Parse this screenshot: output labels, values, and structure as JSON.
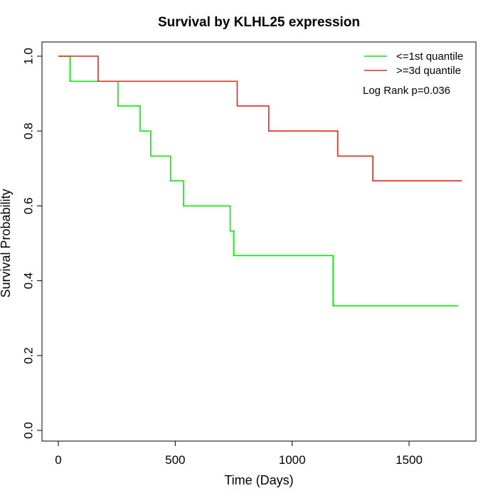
{
  "chart_data": {
    "type": "line",
    "title": "Survival by KLHL25 expression",
    "xlabel": "Time (Days)",
    "ylabel": "Survival Probability",
    "xlim": [
      0,
      1750
    ],
    "ylim": [
      0,
      1
    ],
    "x_ticks": [
      0,
      500,
      1000,
      1500
    ],
    "y_ticks": [
      0.0,
      0.2,
      0.4,
      0.6,
      0.8,
      1.0
    ],
    "x_tick_labels": [
      "0",
      "500",
      "1000",
      "1500"
    ],
    "y_tick_labels": [
      "0.0",
      "0.2",
      "0.4",
      "0.6",
      "0.8",
      "1.0"
    ],
    "grid": false,
    "legend_position": "top-right",
    "annotation": "Log Rank p=0.036",
    "series": [
      {
        "name": "<=1st quantile",
        "color": "#00ee00",
        "x": [
          0,
          50,
          255,
          350,
          395,
          480,
          535,
          735,
          750,
          1175,
          1710
        ],
        "y": [
          1.0,
          0.933,
          0.867,
          0.8,
          0.733,
          0.667,
          0.6,
          0.533,
          0.467,
          0.333,
          0.333
        ]
      },
      {
        "name": ">=3d quantile",
        "color": "#e8261a",
        "x": [
          0,
          170,
          765,
          900,
          1195,
          1345,
          1725
        ],
        "y": [
          1.0,
          0.933,
          0.867,
          0.8,
          0.733,
          0.667,
          0.667
        ]
      }
    ]
  }
}
